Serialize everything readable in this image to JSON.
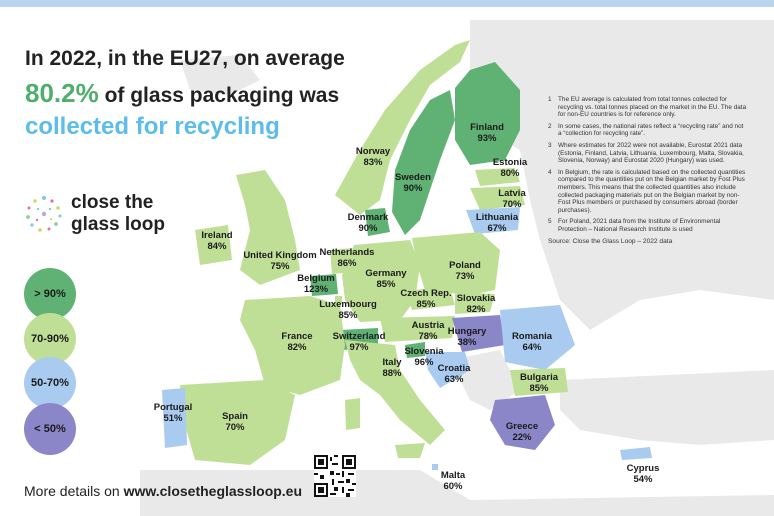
{
  "headline": {
    "line1": "In 2022, in the EU27, on average",
    "percent": "80.2%",
    "line2_rest": " of glass packaging was",
    "line3": "collected for recycling"
  },
  "logo": {
    "line1": "close the",
    "line2": "glass loop"
  },
  "legend": [
    {
      "label": "> 90%",
      "color": "#5fb273"
    },
    {
      "label": "70-90%",
      "color": "#c0df96"
    },
    {
      "label": "50-70%",
      "color": "#a8cbef"
    },
    {
      "label": "< 50%",
      "color": "#8b86c8"
    }
  ],
  "countries": [
    {
      "name": "Finland",
      "rate": "93%",
      "color": "#5fb273"
    },
    {
      "name": "Norway",
      "rate": "83%",
      "color": "#c0df96"
    },
    {
      "name": "Sweden",
      "rate": "90%",
      "color": "#5fb273"
    },
    {
      "name": "Estonia",
      "rate": "80%",
      "color": "#c0df96"
    },
    {
      "name": "Latvia",
      "rate": "70%",
      "color": "#c0df96"
    },
    {
      "name": "Lithuania",
      "rate": "67%",
      "color": "#a8cbef"
    },
    {
      "name": "Denmark",
      "rate": "90%",
      "color": "#5fb273"
    },
    {
      "name": "Ireland",
      "rate": "84%",
      "color": "#c0df96"
    },
    {
      "name": "United Kingdom",
      "rate": "75%",
      "color": "#c0df96"
    },
    {
      "name": "Netherlands",
      "rate": "86%",
      "color": "#c0df96"
    },
    {
      "name": "Germany",
      "rate": "85%",
      "color": "#c0df96"
    },
    {
      "name": "Poland",
      "rate": "73%",
      "color": "#c0df96"
    },
    {
      "name": "Belgium",
      "rate": "123%",
      "color": "#5fb273"
    },
    {
      "name": "Czech Rep.",
      "rate": "85%",
      "color": "#c0df96"
    },
    {
      "name": "Slovakia",
      "rate": "82%",
      "color": "#c0df96"
    },
    {
      "name": "Luxembourg",
      "rate": "85%",
      "color": "#c0df96"
    },
    {
      "name": "France",
      "rate": "82%",
      "color": "#c0df96"
    },
    {
      "name": "Switzerland",
      "rate": "97%",
      "color": "#5fb273"
    },
    {
      "name": "Austria",
      "rate": "78%",
      "color": "#c0df96"
    },
    {
      "name": "Hungary",
      "rate": "38%",
      "color": "#8b86c8"
    },
    {
      "name": "Romania",
      "rate": "64%",
      "color": "#a8cbef"
    },
    {
      "name": "Slovenia",
      "rate": "96%",
      "color": "#5fb273"
    },
    {
      "name": "Croatia",
      "rate": "63%",
      "color": "#a8cbef"
    },
    {
      "name": "Italy",
      "rate": "88%",
      "color": "#c0df96"
    },
    {
      "name": "Bulgaria",
      "rate": "85%",
      "color": "#c0df96"
    },
    {
      "name": "Portugal",
      "rate": "51%",
      "color": "#a8cbef"
    },
    {
      "name": "Spain",
      "rate": "70%",
      "color": "#c0df96"
    },
    {
      "name": "Greece",
      "rate": "22%",
      "color": "#8b86c8"
    },
    {
      "name": "Malta",
      "rate": "60%",
      "color": "#a8cbef"
    },
    {
      "name": "Cyprus",
      "rate": "54%",
      "color": "#a8cbef"
    }
  ],
  "notes": [
    {
      "num": "1",
      "text": "The EU average is calculated from total tonnes collected for recycling vs. total tonnes placed on the market in the EU. The data for non-EU countries is for reference only."
    },
    {
      "num": "2",
      "text": "In some cases, the national rates reflect a “recycling rate” and not a “collection for recycling rate”."
    },
    {
      "num": "3",
      "text": "Where estimates for 2022 were not available, Eurostat 2021 data (Estonia, Finland, Latvia, Lithuania, Luxembourg, Malta, Slovakia, Slovenia, Norway) and Eurostat 2020 (Hungary) was used."
    },
    {
      "num": "4",
      "text": "In Belgium, the rate is calculated based on the collected quantities compared to the quantities put on the Belgian market by Fost Plus members. This means that the collected quantities also include collected packaging materials put on the Belgian market by non-Fost Plus members or purchased by consumers abroad (border purchases)."
    },
    {
      "num": "5",
      "text": "For Poland, 2021 data from the Institute of Environmental Protection – National Research Institute is used"
    }
  ],
  "source": "Source: Close the Glass Loop – 2022 data",
  "footer": {
    "prefix": "More details on ",
    "url": "www.closetheglassloop.eu"
  },
  "colors": {
    "non_data_land": "#e9e9e9",
    "sea": "#ffffff",
    "headline_green": "#4fae6b",
    "headline_blue": "#5bbde8"
  }
}
